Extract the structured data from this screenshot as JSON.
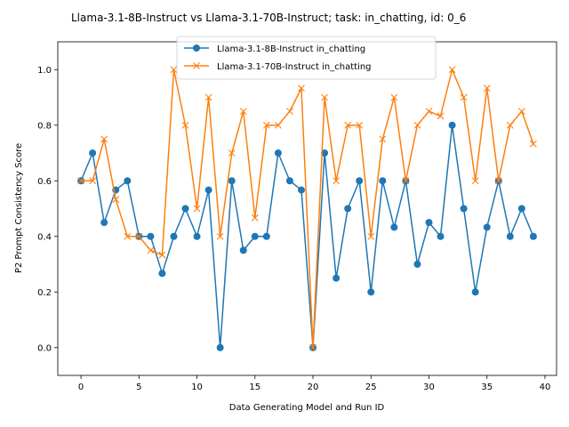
{
  "chart_data": {
    "type": "line",
    "title": "Llama-3.1-8B-Instruct vs Llama-3.1-70B-Instruct; task: in_chatting, id: 0_6",
    "xlabel": "Data Generating Model and Run ID",
    "ylabel": "P2 Prompt Consistency Score",
    "xlim": [
      -2,
      41
    ],
    "ylim": [
      -0.1,
      1.1
    ],
    "xticks": [
      0,
      5,
      10,
      15,
      20,
      25,
      30,
      35,
      40
    ],
    "yticks": [
      0.0,
      0.2,
      0.4,
      0.6,
      0.8,
      1.0
    ],
    "xtick_labels": [
      "0",
      "5",
      "10",
      "15",
      "20",
      "25",
      "30",
      "35",
      "40"
    ],
    "ytick_labels": [
      "0.0",
      "0.2",
      "0.4",
      "0.6",
      "0.8",
      "1.0"
    ],
    "grid": false,
    "legend_position": "upper-center",
    "x": [
      0,
      1,
      2,
      3,
      4,
      5,
      6,
      7,
      8,
      9,
      10,
      11,
      12,
      13,
      14,
      15,
      16,
      17,
      18,
      19,
      20,
      21,
      22,
      23,
      24,
      25,
      26,
      27,
      28,
      29,
      30,
      31,
      32,
      33,
      34,
      35,
      36,
      37,
      38,
      39
    ],
    "series": [
      {
        "name": "Llama-3.1-8B-Instruct in_chatting",
        "color": "#1f77b4",
        "marker": "circle",
        "values": [
          0.6,
          0.7,
          0.45,
          0.567,
          0.6,
          0.4,
          0.4,
          0.267,
          0.4,
          0.5,
          0.4,
          0.567,
          0.0,
          0.6,
          0.35,
          0.4,
          0.4,
          0.7,
          0.6,
          0.567,
          0.0,
          0.7,
          0.25,
          0.5,
          0.6,
          0.2,
          0.6,
          0.433,
          0.6,
          0.3,
          0.45,
          0.4,
          0.8,
          0.5,
          0.2,
          0.433,
          0.6,
          0.4,
          0.5,
          0.4
        ]
      },
      {
        "name": "Llama-3.1-70B-Instruct in_chatting",
        "color": "#ff7f0e",
        "marker": "x",
        "values": [
          0.6,
          0.6,
          0.75,
          0.533,
          0.4,
          0.4,
          0.35,
          0.333,
          1.0,
          0.8,
          0.5,
          0.9,
          0.4,
          0.7,
          0.85,
          0.467,
          0.8,
          0.8,
          0.85,
          0.933,
          0.0,
          0.9,
          0.6,
          0.8,
          0.8,
          0.4,
          0.75,
          0.9,
          0.6,
          0.8,
          0.85,
          0.833,
          1.0,
          0.9,
          0.6,
          0.933,
          0.6,
          0.8,
          0.85,
          0.733
        ]
      }
    ]
  }
}
